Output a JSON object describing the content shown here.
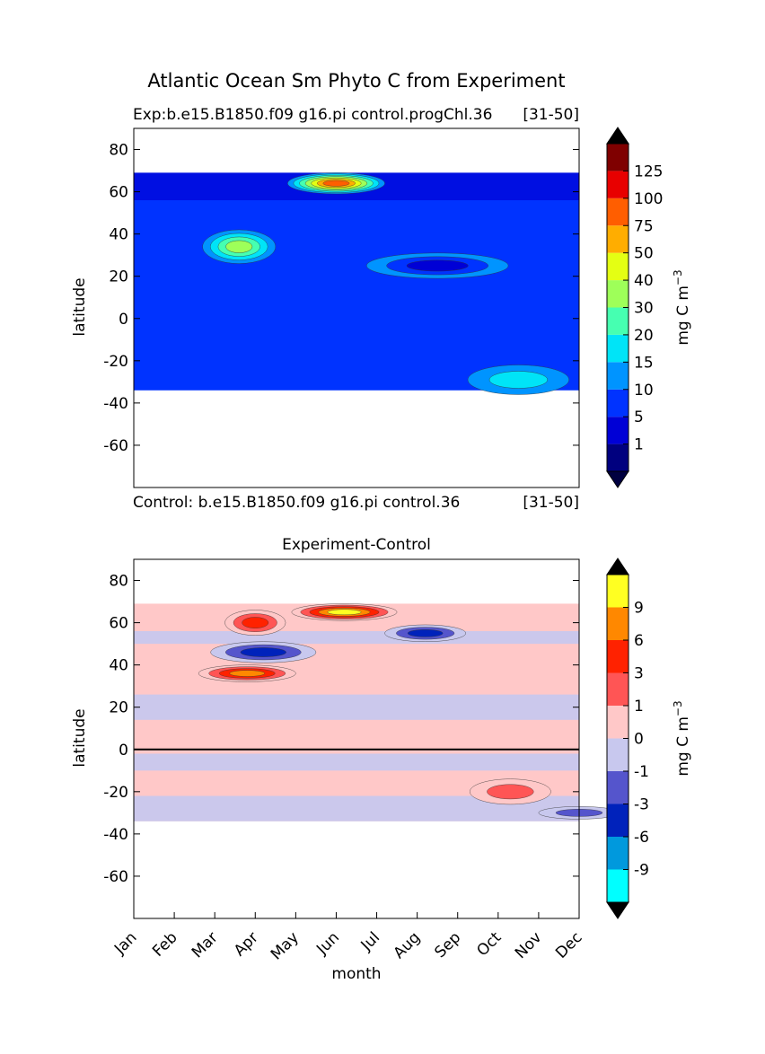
{
  "suptitle": "Atlantic Ocean Sm Phyto C from Experiment",
  "chart_data": [
    {
      "type": "heatmap",
      "title_left": "Exp:b.e15.B1850.f09 g16.pi control.progChl.36",
      "title_right": "[31-50]",
      "footer_left": "Control: b.e15.B1850.f09 g16.pi control.36",
      "footer_right": "[31-50]",
      "ylabel": "latitude",
      "xlabel": "",
      "ylim": [
        -80,
        90
      ],
      "yticks": [
        80,
        60,
        40,
        20,
        0,
        -20,
        -40,
        -60
      ],
      "data_lat_range": [
        -34,
        69
      ],
      "colorbar": {
        "label": "mg C m",
        "label_sup": "−3",
        "levels": [
          "1",
          "5",
          "10",
          "15",
          "20",
          "30",
          "40",
          "50",
          "75",
          "100",
          "125"
        ],
        "colors": [
          "#00007f",
          "#0000d6",
          "#0033ff",
          "#0094ff",
          "#00e4f7",
          "#46ffb1",
          "#9eff59",
          "#e4ff13",
          "#ffad00",
          "#ff5e00",
          "#e80000",
          "#7f0000"
        ],
        "extend": "both",
        "under_color": "#000040",
        "over_color": "#000000"
      },
      "features": [
        {
          "month": 5.0,
          "lat": 64,
          "span_m": 2.4,
          "span_lat": 5,
          "level": 9
        },
        {
          "month": 2.6,
          "lat": 34,
          "span_m": 1.8,
          "span_lat": 8,
          "level": 6
        },
        {
          "month": 9.5,
          "lat": -29,
          "span_m": 2.5,
          "span_lat": 7,
          "level": 4
        },
        {
          "month": 7.5,
          "lat": 25,
          "span_m": 3.5,
          "span_lat": 6,
          "level": 1
        }
      ]
    },
    {
      "type": "heatmap",
      "title": "Experiment-Control",
      "ylabel": "latitude",
      "xlabel": "month",
      "ylim": [
        -80,
        90
      ],
      "yticks": [
        80,
        60,
        40,
        20,
        0,
        -20,
        -40,
        -60
      ],
      "xticks": [
        "Jan",
        "Feb",
        "Mar",
        "Apr",
        "May",
        "Jun",
        "Jul",
        "Aug",
        "Sep",
        "Oct",
        "Nov",
        "Dec"
      ],
      "data_lat_range": [
        -34,
        69
      ],
      "colorbar": {
        "label": "mg C m",
        "label_sup": "−3",
        "levels": [
          "-9",
          "-6",
          "-3",
          "-1",
          "0",
          "1",
          "3",
          "6",
          "9"
        ],
        "colors": [
          "#00ffff",
          "#0099dd",
          "#0022bb",
          "#5555cc",
          "#c8c8ee",
          "#ffc8c8",
          "#ff5555",
          "#ff2200",
          "#ff8800",
          "#ffff22"
        ],
        "extend": "both",
        "under_color": "#000000",
        "over_color": "#000000"
      },
      "features": [
        {
          "month": 3.0,
          "lat": 60,
          "span_m": 1.5,
          "span_lat": 6,
          "level": 7
        },
        {
          "month": 5.2,
          "lat": 65,
          "span_m": 2.6,
          "span_lat": 4,
          "level": 9
        },
        {
          "month": 2.8,
          "lat": 36,
          "span_m": 2.4,
          "span_lat": 4,
          "level": 8
        },
        {
          "month": 3.2,
          "lat": 46,
          "span_m": 2.6,
          "span_lat": 5,
          "level": 2
        },
        {
          "month": 7.2,
          "lat": 55,
          "span_m": 2.0,
          "span_lat": 4,
          "level": 2
        },
        {
          "month": 9.3,
          "lat": -20,
          "span_m": 2.0,
          "span_lat": 6,
          "level": 6
        },
        {
          "month": 11.0,
          "lat": -30,
          "span_m": 2.0,
          "span_lat": 3,
          "level": 3
        }
      ]
    }
  ],
  "colors": {
    "background": "#ffffff",
    "axis": "#000000"
  }
}
